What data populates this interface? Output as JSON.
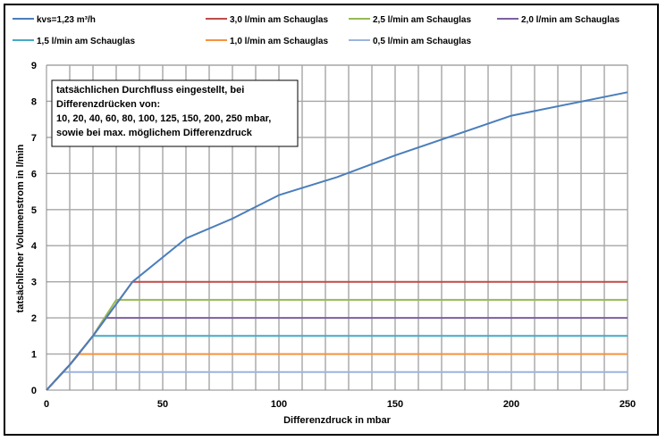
{
  "chart_data": {
    "type": "line",
    "title": "",
    "xlabel": "Differenzdruck in mbar",
    "ylabel": "tatsächlicher Volumenstrom in l/min",
    "xlim": [
      0,
      250
    ],
    "ylim": [
      0,
      9
    ],
    "x_ticks": [
      "0",
      "50",
      "100",
      "150",
      "200",
      "250"
    ],
    "y_ticks": [
      "0",
      "1",
      "2",
      "3",
      "4",
      "5",
      "6",
      "7",
      "8",
      "9"
    ],
    "grid": "vertical lines every 10 mbar; horizontal lines every 1 l/min",
    "legend_position": "top",
    "annotation": [
      "tatsächlichen Durchfluss eingestellt, bei",
      "Differenzdrücken von:",
      "10, 20, 40, 60, 80, 100, 125, 150, 200, 250 mbar,",
      "sowie bei max. möglichem Differenzdruck"
    ],
    "series": [
      {
        "name": "kvs=1,23 m³/h",
        "color": "#4a7ebb",
        "x": [
          0,
          10,
          20,
          37,
          60,
          80,
          100,
          125,
          150,
          200,
          250
        ],
        "y": [
          0,
          0.7,
          1.5,
          3.0,
          4.2,
          4.75,
          5.4,
          5.9,
          6.5,
          7.6,
          8.25
        ]
      },
      {
        "name": "3,0 l/min am Schauglas",
        "color": "#be4b48",
        "x": [
          0,
          10,
          20,
          37,
          250
        ],
        "y": [
          0,
          0.7,
          1.5,
          3.0,
          3.0
        ]
      },
      {
        "name": "2,5 l/min am Schauglas",
        "color": "#98b954",
        "x": [
          0,
          10,
          20,
          30,
          250
        ],
        "y": [
          0,
          0.7,
          1.5,
          2.5,
          2.5
        ]
      },
      {
        "name": "2,0 l/min am Schauglas",
        "color": "#7d60a0",
        "x": [
          0,
          10,
          20,
          25,
          250
        ],
        "y": [
          0,
          0.7,
          1.5,
          2.0,
          2.0
        ]
      },
      {
        "name": "1,5 l/min am Schauglas",
        "color": "#46aac5",
        "x": [
          0,
          10,
          20,
          250
        ],
        "y": [
          0,
          0.7,
          1.5,
          1.5
        ]
      },
      {
        "name": "1,0 l/min am Schauglas",
        "color": "#f69240",
        "x": [
          0,
          10,
          14,
          250
        ],
        "y": [
          0,
          0.7,
          1.0,
          1.0
        ]
      },
      {
        "name": "0,5 l/min am Schauglas",
        "color": "#9bb4de",
        "x": [
          0,
          7,
          250
        ],
        "y": [
          0,
          0.5,
          0.5
        ]
      }
    ]
  }
}
